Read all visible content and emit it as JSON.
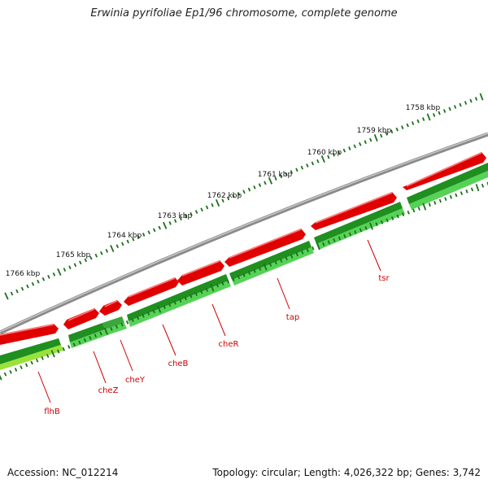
{
  "title": "Erwinia pyrifoliae Ep1/96 chromosome, complete genome",
  "footer": {
    "accession": "Accession: NC_012214",
    "topology": "Topology: circular; Length: 4,026,322 bp; Genes: 3,742"
  },
  "colors": {
    "backbone": "#8a8a8a",
    "forward_feature": "#e00000",
    "reverse_feature": "#1f8f1f",
    "reverse_feature_light": "#56d256",
    "reverse_feature_yellow": "#d8f03a",
    "ruler": "#1e6e1e",
    "gene_label": "#cc0000"
  },
  "ruler_labels": [
    "1766 kbp",
    "1765 kbp",
    "1764 kbp",
    "1763 kbp",
    "1762 kbp",
    "1761 kbp",
    "1760 kbp",
    "1759 kbp",
    "1758 kbp"
  ],
  "genes": [
    {
      "name": "flhB"
    },
    {
      "name": "cheZ"
    },
    {
      "name": "cheY"
    },
    {
      "name": "cheB"
    },
    {
      "name": "cheR"
    },
    {
      "name": "tap"
    },
    {
      "name": "tsr"
    }
  ]
}
